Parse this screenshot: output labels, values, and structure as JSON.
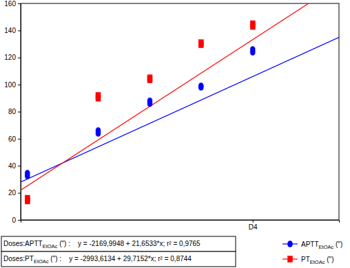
{
  "chart_data": {
    "type": "scatter",
    "xlim": [
      0.87,
      7.03
    ],
    "xticks": [
      {
        "value": 5.36,
        "label": "D4"
      }
    ],
    "ylim": [
      0,
      160
    ],
    "yticks": [
      0,
      20,
      40,
      60,
      80,
      100,
      120,
      140,
      160
    ],
    "grid": false,
    "legend": "bottom-right",
    "series": [
      {
        "name": "APTTEtOAc (\")",
        "subscript": "EtOAc",
        "type": "scatter",
        "color": "#0000ff",
        "marker": "circle",
        "x": [
          1,
          1,
          2.37,
          2.37,
          3.37,
          3.37,
          4.36,
          4.36,
          5.36,
          5.36
        ],
        "values": [
          32.5,
          34.5,
          64,
          66,
          86,
          88,
          98,
          99,
          124,
          126
        ]
      },
      {
        "name": "PTEtOAc (\")",
        "subscript": "EtOAc",
        "type": "scatter",
        "color": "#ff0000",
        "marker": "square",
        "x": [
          1,
          1,
          2.37,
          2.37,
          3.37,
          3.37,
          4.36,
          4.36,
          5.36,
          5.36
        ],
        "values": [
          14,
          16,
          90,
          92,
          103.5,
          105,
          129.5,
          131,
          143,
          145
        ]
      },
      {
        "type": "line",
        "color": "#0000ff",
        "line_style": "solid",
        "x": [
          0.87,
          7.03
        ],
        "values": [
          28,
          135
        ]
      },
      {
        "type": "line",
        "color": "#ff0000",
        "line_style": "solid",
        "x": [
          0.87,
          6.44
        ],
        "values": [
          22,
          160
        ]
      }
    ],
    "annotations": [
      {
        "text": "Doses:APTTEtOAc (\") :    y = -2169,9948 + 21,6533*x; r² = 0,9765",
        "subscript": "EtOAc"
      },
      {
        "text": "Doses:PTEtOAc (\") :    y = -2993,6134 + 29,7152*x; r² = 0,8744",
        "subscript": "EtOAc"
      }
    ]
  }
}
